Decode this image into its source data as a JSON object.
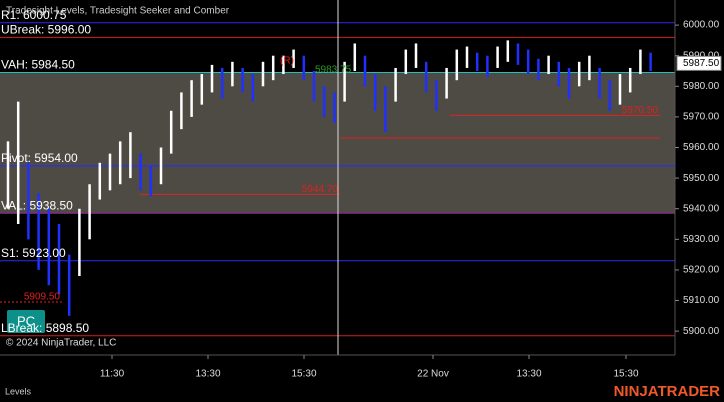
{
  "title": "Tradesight Levels, Tradesight Seeker and Comber",
  "price_axis": {
    "ylim": [
      5892.2,
      6008.2
    ],
    "yticks": [
      {
        "value": 5900,
        "label": "5900.00"
      },
      {
        "value": 5910,
        "label": "5910.00"
      },
      {
        "value": 5920,
        "label": "5920.00"
      },
      {
        "value": 5930,
        "label": "5930.00"
      },
      {
        "value": 5940,
        "label": "5940.00"
      },
      {
        "value": 5950,
        "label": "5950.00"
      },
      {
        "value": 5960,
        "label": "5960.00"
      },
      {
        "value": 5970,
        "label": "5970.00"
      },
      {
        "value": 5980,
        "label": "5980.00"
      },
      {
        "value": 5990,
        "label": "5990.00"
      },
      {
        "value": 6000,
        "label": "6000.00"
      }
    ]
  },
  "current_price": {
    "value": 5987.5,
    "label": "5987.50"
  },
  "value_area": {
    "high": 5984.5,
    "low": 5938.5,
    "color": "#4d4b43"
  },
  "levels": [
    {
      "label": "R1: 6000.75",
      "value": 6000.75,
      "color": "#2a2aff"
    },
    {
      "label": "UBreak: 5996.00",
      "value": 5996,
      "color": "#d02020"
    },
    {
      "label": "VAH: 5984.50",
      "value": 5984.5,
      "color": "#20c0c0"
    },
    {
      "label": "Pivot: 5954.00",
      "value": 5954,
      "color": "#2a2aff"
    },
    {
      "label": "VAL: 5938.50",
      "value": 5938.5,
      "color": "#a020a0"
    },
    {
      "label": "S1: 5923.00",
      "value": 5923,
      "color": "#2a2aff"
    },
    {
      "label": "LBreak: 5898.50",
      "value": 5898.5,
      "color": "#d02020"
    }
  ],
  "projections": [
    {
      "label": "5944.70",
      "value": 5944.7
    },
    {
      "label": "5970.50",
      "value": 5970.5
    },
    {
      "label": "5909.50",
      "value": 5909.5
    }
  ],
  "annotations": {
    "reversal": "(R)",
    "seeker": "5983.75"
  },
  "time_labels": [
    "11:30",
    "13:30",
    "15:30",
    "22 Nov",
    "13:30",
    "15:30"
  ],
  "bars": {
    "low": [
      5940,
      5935,
      5930,
      5920,
      5915,
      5912,
      5905,
      5918,
      5930,
      5943,
      5946,
      5948,
      5950,
      5946,
      5944,
      5948,
      5958,
      5966,
      5970,
      5974,
      5978,
      5976,
      5980,
      5978,
      5975,
      5980,
      5982,
      5984,
      5986,
      5982,
      5975,
      5970,
      5968,
      5975,
      5985,
      5980,
      5972,
      5965,
      5975,
      5984,
      5986,
      5978,
      5972,
      5976,
      5982,
      5986,
      5985,
      5983,
      5986,
      5988,
      5987,
      5984,
      5982,
      5984,
      5980,
      5976,
      5980,
      5982,
      5976,
      5972,
      5974,
      5978,
      5984,
      5985
    ],
    "high": [
      5962,
      5975,
      5955,
      5945,
      5940,
      5935,
      5925,
      5940,
      5948,
      5955,
      5958,
      5962,
      5965,
      5958,
      5954,
      5960,
      5972,
      5978,
      5982,
      5984,
      5987,
      5986,
      5988,
      5986,
      5984,
      5988,
      5990,
      5990,
      5992,
      5990,
      5985,
      5980,
      5978,
      5988,
      5994,
      5990,
      5984,
      5980,
      5986,
      5992,
      5994,
      5988,
      5982,
      5986,
      5992,
      5993,
      5991,
      5990,
      5993,
      5995,
      5994,
      5992,
      5989,
      5990,
      5988,
      5986,
      5988,
      5990,
      5986,
      5982,
      5984,
      5986,
      5992,
      5991
    ]
  },
  "copyright": "© 2024 NinjaTrader, LLC",
  "button": "PC",
  "footer": "Levels",
  "logo": "NINJATRADER"
}
